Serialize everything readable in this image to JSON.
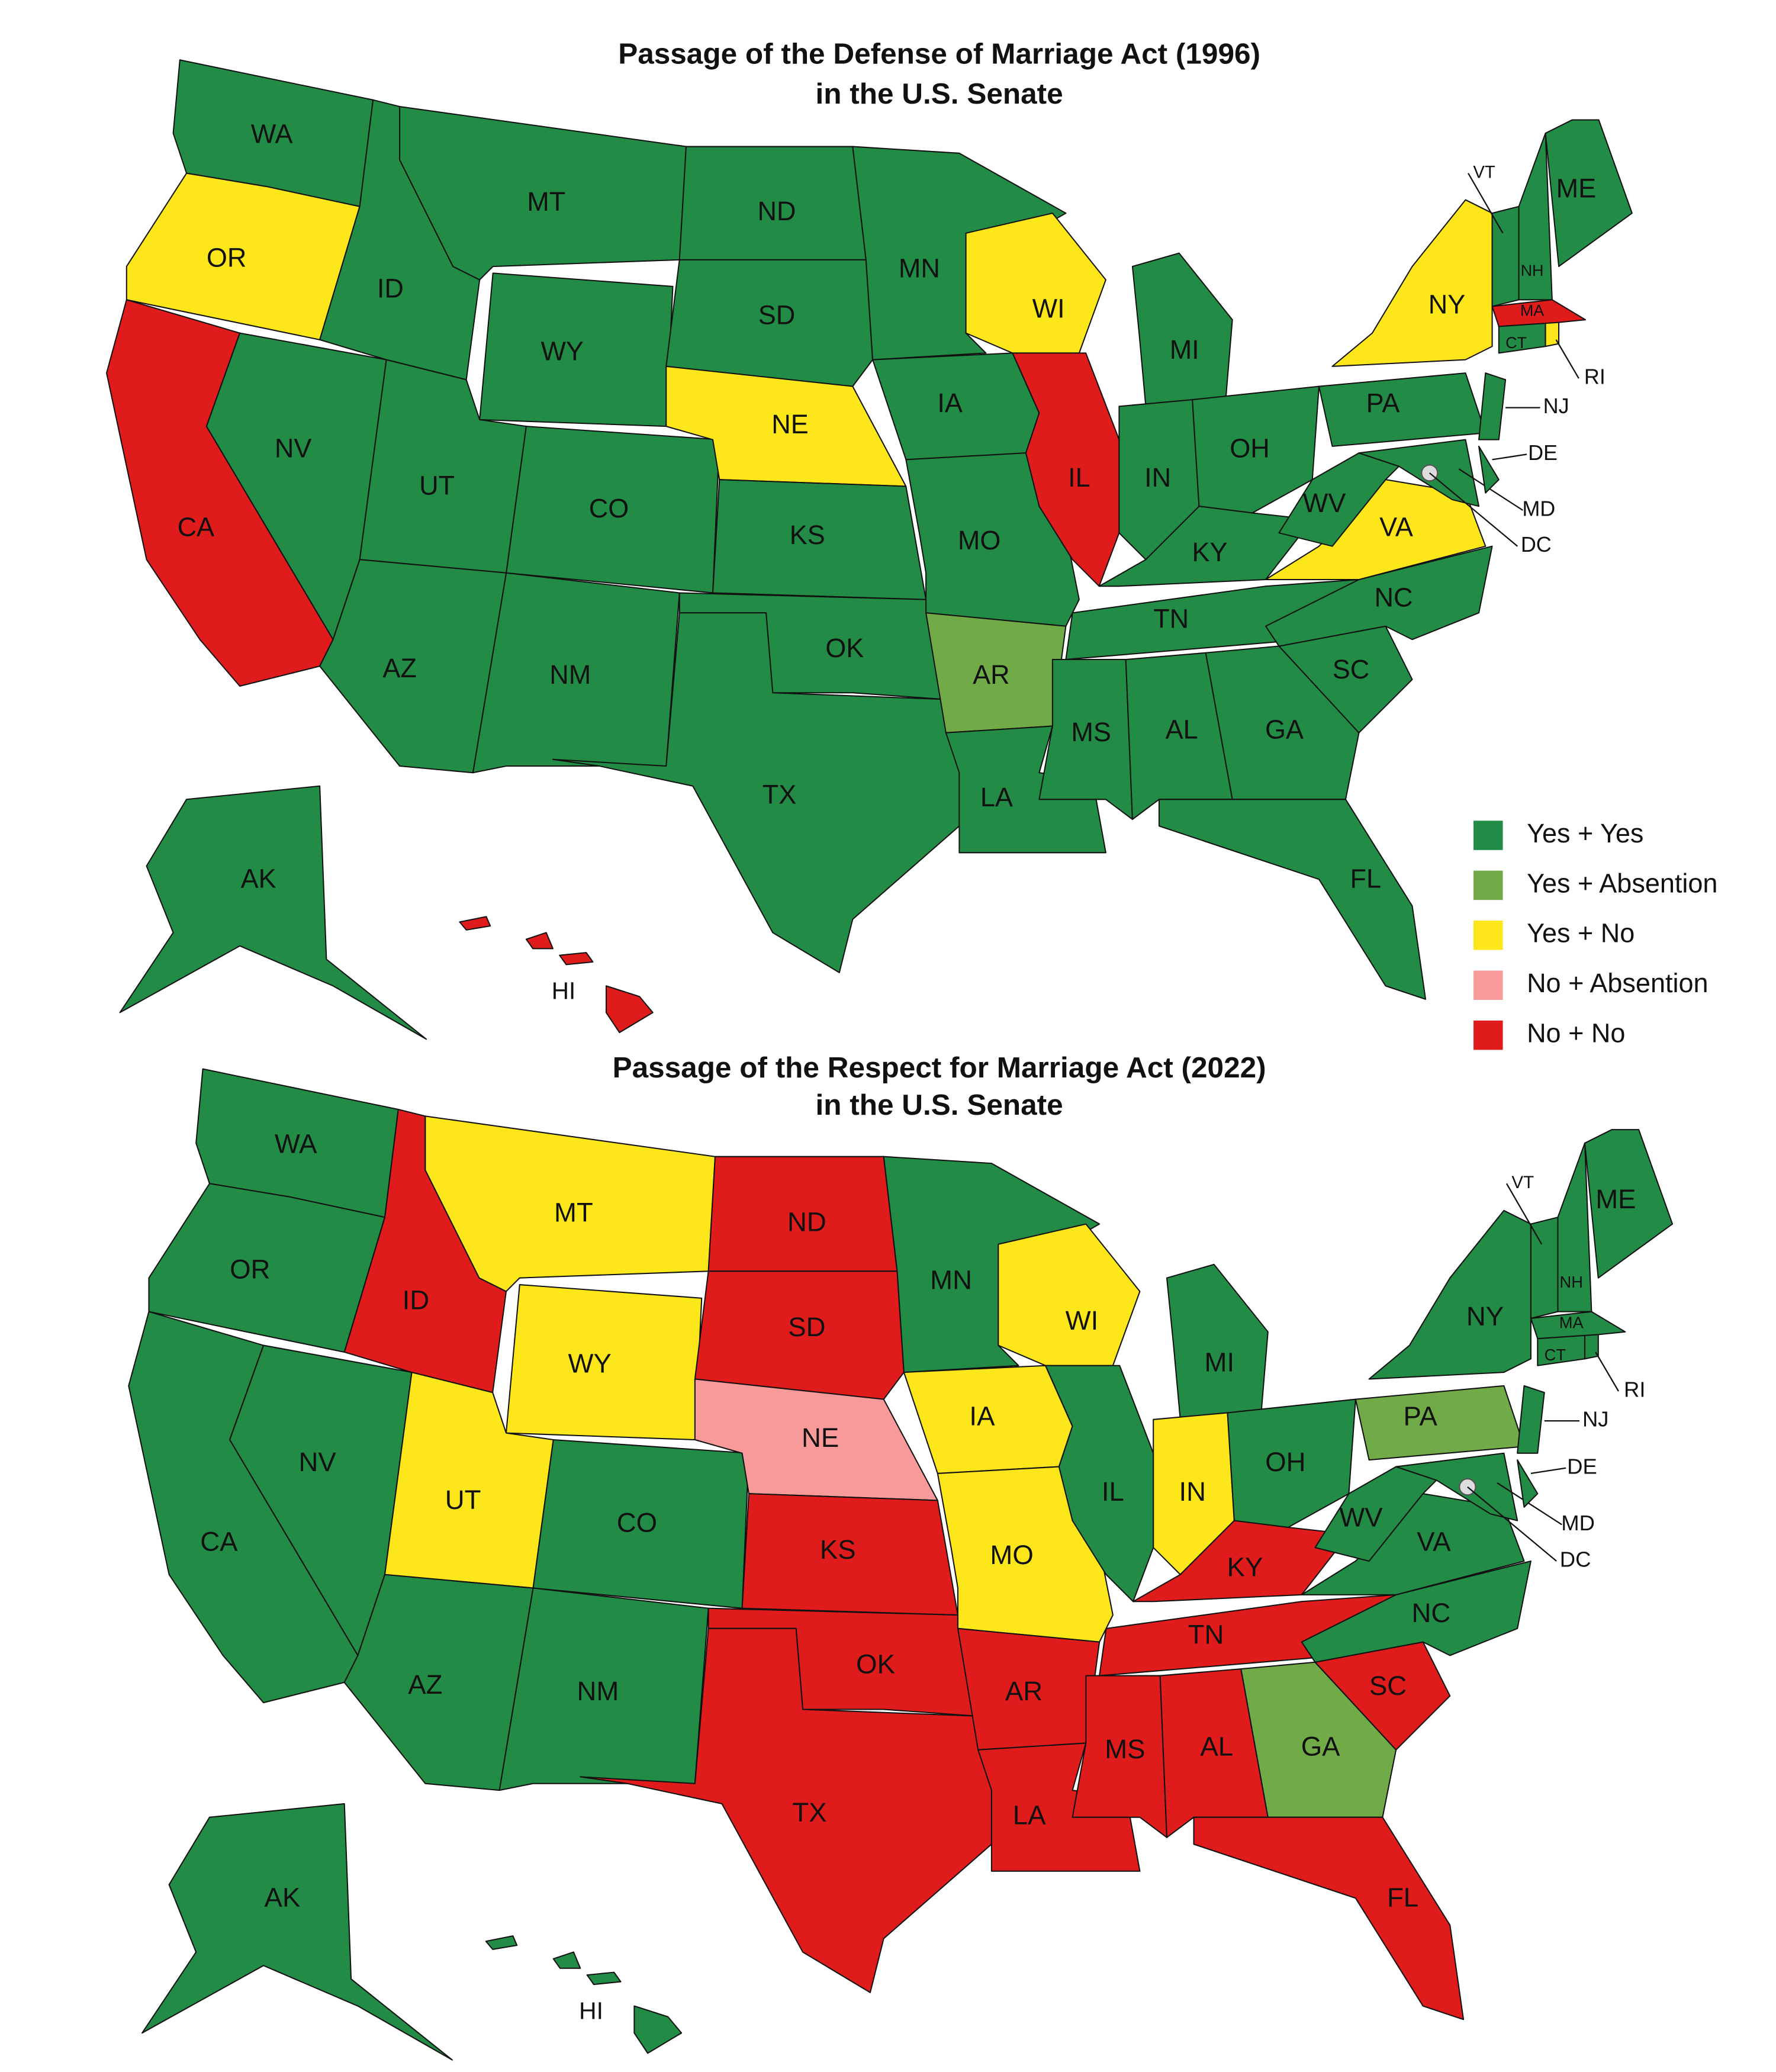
{
  "legend": [
    {
      "name": "Yes + Yes",
      "color": "#228b45"
    },
    {
      "name": "Yes + Absention",
      "color": "#70ab47"
    },
    {
      "name": "Yes + No",
      "color": "#fde619"
    },
    {
      "name": "No + Absention",
      "color": "#f99a9a"
    },
    {
      "name": "No + No",
      "color": "#e01b1b"
    }
  ],
  "maps": [
    {
      "title": "Passage of the Defense of Marriage Act (1996)",
      "subtitle": "in the U.S. Senate",
      "states": [
        {
          "label": "WA",
          "vote": "Yes + Yes"
        },
        {
          "label": "OR",
          "vote": "Yes + No"
        },
        {
          "label": "CA",
          "vote": "No + No"
        },
        {
          "label": "NV",
          "vote": "Yes + Yes"
        },
        {
          "label": "ID",
          "vote": "Yes + Yes"
        },
        {
          "label": "MT",
          "vote": "Yes + Yes"
        },
        {
          "label": "WY",
          "vote": "Yes + Yes"
        },
        {
          "label": "UT",
          "vote": "Yes + Yes"
        },
        {
          "label": "CO",
          "vote": "Yes + Yes"
        },
        {
          "label": "AZ",
          "vote": "Yes + Yes"
        },
        {
          "label": "NM",
          "vote": "Yes + Yes"
        },
        {
          "label": "ND",
          "vote": "Yes + Yes"
        },
        {
          "label": "SD",
          "vote": "Yes + Yes"
        },
        {
          "label": "NE",
          "vote": "Yes + No"
        },
        {
          "label": "KS",
          "vote": "Yes + Yes"
        },
        {
          "label": "OK",
          "vote": "Yes + Yes"
        },
        {
          "label": "TX",
          "vote": "Yes + Yes"
        },
        {
          "label": "MN",
          "vote": "Yes + Yes"
        },
        {
          "label": "IA",
          "vote": "Yes + Yes"
        },
        {
          "label": "MO",
          "vote": "Yes + Yes"
        },
        {
          "label": "AR",
          "vote": "Yes + Absention"
        },
        {
          "label": "LA",
          "vote": "Yes + Yes"
        },
        {
          "label": "WI",
          "vote": "Yes + No"
        },
        {
          "label": "IL",
          "vote": "No + No"
        },
        {
          "label": "MI",
          "vote": "Yes + Yes"
        },
        {
          "label": "IN",
          "vote": "Yes + Yes"
        },
        {
          "label": "OH",
          "vote": "Yes + Yes"
        },
        {
          "label": "KY",
          "vote": "Yes + Yes"
        },
        {
          "label": "TN",
          "vote": "Yes + Yes"
        },
        {
          "label": "MS",
          "vote": "Yes + Yes"
        },
        {
          "label": "AL",
          "vote": "Yes + Yes"
        },
        {
          "label": "GA",
          "vote": "Yes + Yes"
        },
        {
          "label": "FL",
          "vote": "Yes + Yes"
        },
        {
          "label": "SC",
          "vote": "Yes + Yes"
        },
        {
          "label": "NC",
          "vote": "Yes + Yes"
        },
        {
          "label": "VA",
          "vote": "Yes + No"
        },
        {
          "label": "WV",
          "vote": "Yes + Yes"
        },
        {
          "label": "PA",
          "vote": "Yes + Yes"
        },
        {
          "label": "NY",
          "vote": "Yes + No"
        },
        {
          "label": "MD",
          "vote": "Yes + Yes"
        },
        {
          "label": "DE",
          "vote": "Yes + Yes"
        },
        {
          "label": "NJ",
          "vote": "Yes + Yes"
        },
        {
          "label": "CT",
          "vote": "Yes + Yes"
        },
        {
          "label": "RI",
          "vote": "Yes + No"
        },
        {
          "label": "MA",
          "vote": "No + No"
        },
        {
          "label": "VT",
          "vote": "Yes + Yes"
        },
        {
          "label": "NH",
          "vote": "Yes + Yes"
        },
        {
          "label": "ME",
          "vote": "Yes + Yes"
        },
        {
          "label": "AK",
          "vote": "Yes + Yes"
        },
        {
          "label": "HI",
          "vote": "No + No"
        },
        {
          "label": "DC"
        }
      ]
    },
    {
      "title": "Passage of the Respect for Marriage Act (2022)",
      "subtitle": "in the U.S. Senate",
      "states": [
        {
          "label": "WA",
          "vote": "Yes + Yes"
        },
        {
          "label": "OR",
          "vote": "Yes + Yes"
        },
        {
          "label": "CA",
          "vote": "Yes + Yes"
        },
        {
          "label": "NV",
          "vote": "Yes + Yes"
        },
        {
          "label": "ID",
          "vote": "No + No"
        },
        {
          "label": "MT",
          "vote": "Yes + No"
        },
        {
          "label": "WY",
          "vote": "Yes + No"
        },
        {
          "label": "UT",
          "vote": "Yes + No"
        },
        {
          "label": "CO",
          "vote": "Yes + Yes"
        },
        {
          "label": "AZ",
          "vote": "Yes + Yes"
        },
        {
          "label": "NM",
          "vote": "Yes + Yes"
        },
        {
          "label": "ND",
          "vote": "No + No"
        },
        {
          "label": "SD",
          "vote": "No + No"
        },
        {
          "label": "NE",
          "vote": "No + Absention"
        },
        {
          "label": "KS",
          "vote": "No + No"
        },
        {
          "label": "OK",
          "vote": "No + No"
        },
        {
          "label": "TX",
          "vote": "No + No"
        },
        {
          "label": "MN",
          "vote": "Yes + Yes"
        },
        {
          "label": "IA",
          "vote": "Yes + No"
        },
        {
          "label": "MO",
          "vote": "Yes + No"
        },
        {
          "label": "AR",
          "vote": "No + No"
        },
        {
          "label": "LA",
          "vote": "No + No"
        },
        {
          "label": "WI",
          "vote": "Yes + No"
        },
        {
          "label": "IL",
          "vote": "Yes + Yes"
        },
        {
          "label": "MI",
          "vote": "Yes + Yes"
        },
        {
          "label": "IN",
          "vote": "Yes + No"
        },
        {
          "label": "OH",
          "vote": "Yes + Yes"
        },
        {
          "label": "KY",
          "vote": "No + No"
        },
        {
          "label": "TN",
          "vote": "No + No"
        },
        {
          "label": "MS",
          "vote": "No + No"
        },
        {
          "label": "AL",
          "vote": "No + No"
        },
        {
          "label": "GA",
          "vote": "Yes + Absention"
        },
        {
          "label": "FL",
          "vote": "No + No"
        },
        {
          "label": "SC",
          "vote": "No + No"
        },
        {
          "label": "NC",
          "vote": "Yes + Yes"
        },
        {
          "label": "VA",
          "vote": "Yes + Yes"
        },
        {
          "label": "WV",
          "vote": "Yes + Yes"
        },
        {
          "label": "PA",
          "vote": "Yes + Absention"
        },
        {
          "label": "NY",
          "vote": "Yes + Yes"
        },
        {
          "label": "MD",
          "vote": "Yes + Yes"
        },
        {
          "label": "DE",
          "vote": "Yes + Yes"
        },
        {
          "label": "NJ",
          "vote": "Yes + Yes"
        },
        {
          "label": "CT",
          "vote": "Yes + Yes"
        },
        {
          "label": "RI",
          "vote": "Yes + Yes"
        },
        {
          "label": "MA",
          "vote": "Yes + Yes"
        },
        {
          "label": "VT",
          "vote": "Yes + Yes"
        },
        {
          "label": "NH",
          "vote": "Yes + Yes"
        },
        {
          "label": "ME",
          "vote": "Yes + Yes"
        },
        {
          "label": "AK",
          "vote": "Yes + Yes"
        },
        {
          "label": "HI",
          "vote": "Yes + Yes"
        },
        {
          "label": "DC"
        }
      ]
    }
  ]
}
